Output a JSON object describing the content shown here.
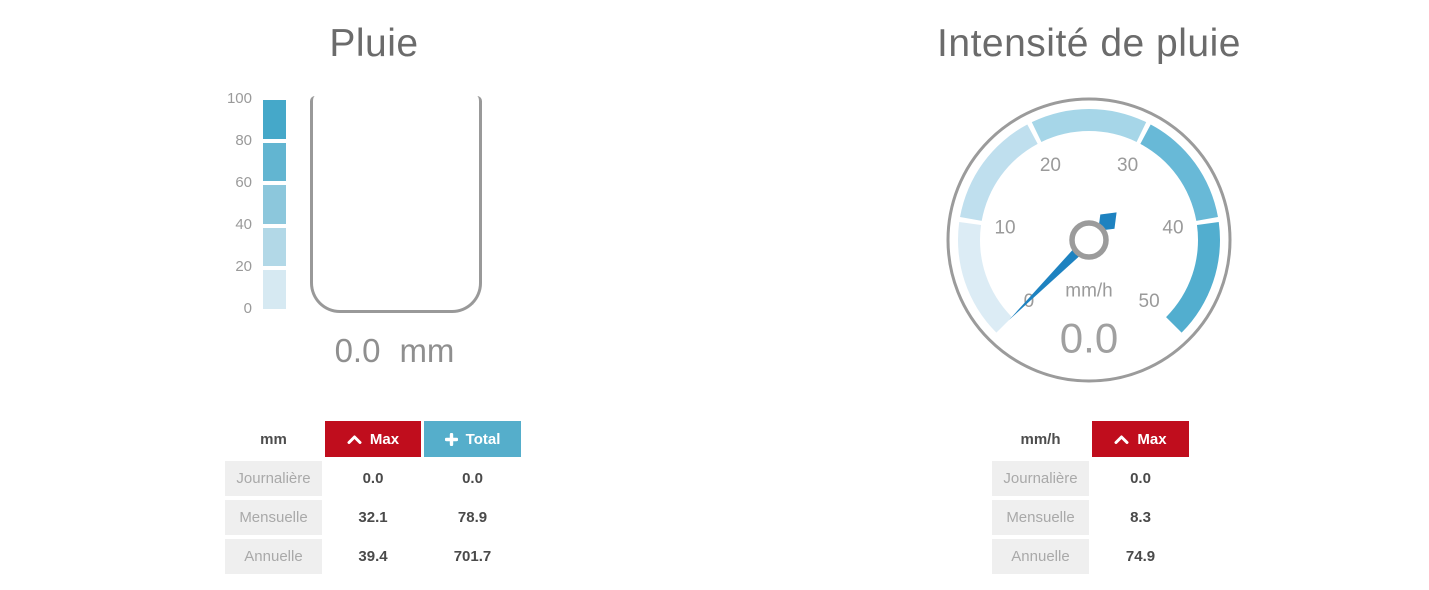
{
  "rain": {
    "title": "Pluie",
    "reading": {
      "value": "0.0",
      "unit": "mm"
    },
    "scale": {
      "min": 0,
      "max": 100,
      "ticks": [
        "100",
        "80",
        "60",
        "40",
        "20",
        "0"
      ],
      "colors": [
        "#45a8c9",
        "#62b5d1",
        "#8cc7dc",
        "#b2d8e7",
        "#d6e9f2"
      ]
    },
    "table": {
      "unit_header": "mm",
      "columns": [
        {
          "label": "Max",
          "icon": "chevron-up",
          "color": "#c00d1d"
        },
        {
          "label": "Total",
          "icon": "plus",
          "color": "#55aecb"
        }
      ],
      "rows": [
        {
          "label": "Journalière",
          "max": "0.0",
          "total": "0.0"
        },
        {
          "label": "Mensuelle",
          "max": "32.1",
          "total": "78.9"
        },
        {
          "label": "Annuelle",
          "max": "39.4",
          "total": "701.7"
        }
      ]
    }
  },
  "intensity": {
    "title": "Intensité de pluie",
    "unit_label": "mm/h",
    "reading": "0.0",
    "gauge": {
      "min": 0,
      "max": 50,
      "value": 0.0,
      "start_angle": 225,
      "end_angle": -45,
      "ticks": [
        0,
        10,
        20,
        30,
        40,
        50
      ],
      "segment_colors": [
        "#dcecf5",
        "#bfdfee",
        "#a6d6e8",
        "#68b9d7",
        "#52aecf"
      ],
      "needle_color": "#1e82c0",
      "ring_color": "#9b9b9b",
      "tick_color": "#9a9a9a",
      "value_color": "#a0a0a0"
    },
    "table": {
      "unit_header": "mm/h",
      "columns": [
        {
          "label": "Max",
          "icon": "chevron-up",
          "color": "#c00d1d"
        }
      ],
      "rows": [
        {
          "label": "Journalière",
          "max": "0.0"
        },
        {
          "label": "Mensuelle",
          "max": "8.3"
        },
        {
          "label": "Annuelle",
          "max": "74.9"
        }
      ]
    }
  },
  "chart_data": [
    {
      "type": "gauge",
      "style": "vertical-rain-bucket",
      "title": "Pluie",
      "unit": "mm",
      "value": 0.0,
      "display": "0.0 mm",
      "axis": {
        "min": 0,
        "max": 100,
        "ticks": [
          0,
          20,
          40,
          60,
          80,
          100
        ]
      },
      "stats": {
        "columns": [
          "Max",
          "Total"
        ],
        "rows": [
          [
            "Journalière",
            0.0,
            0.0
          ],
          [
            "Mensuelle",
            32.1,
            78.9
          ],
          [
            "Annuelle",
            39.4,
            701.7
          ]
        ]
      }
    },
    {
      "type": "gauge",
      "style": "radial-needle-gauge",
      "title": "Intensité de pluie",
      "unit": "mm/h",
      "value": 0.0,
      "display": "0.0",
      "axis": {
        "min": 0,
        "max": 50,
        "ticks": [
          0,
          10,
          20,
          30,
          40,
          50
        ],
        "sweep_deg": 270
      },
      "stats": {
        "columns": [
          "Max"
        ],
        "rows": [
          [
            "Journalière",
            0.0
          ],
          [
            "Mensuelle",
            8.3
          ],
          [
            "Annuelle",
            74.9
          ]
        ]
      }
    }
  ]
}
